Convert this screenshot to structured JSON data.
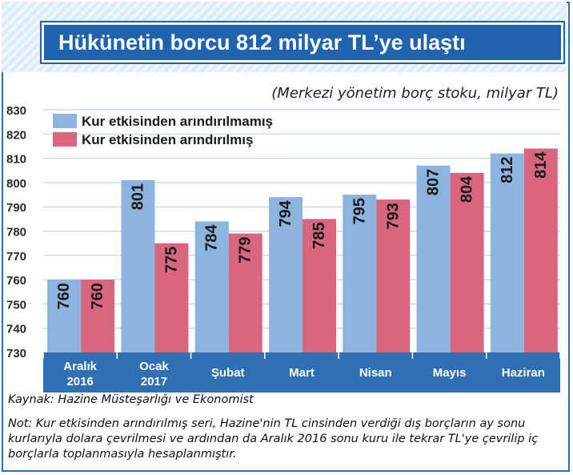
{
  "title": "Hükünetin borcu 812 milyar TL’ye ulaştı",
  "subtitle": "(Merkezi yönetim borç stoku, milyar TL)",
  "source": "Kaynak: Hazine Müsteşarlığı ve Ekonomist",
  "note": "Not: Kur etkisinden arındırılmış seri, Hazine'nin TL cinsinden verdiği dış borçların ay sonu kurlarıyla dolara çevrilmesi ve ardından da Aralık 2016 sonu kuru ile tekrar TL'ye çevrilip iç borçlarla toplanmasıyla hesaplanmıştır.",
  "colors": {
    "series1": "#8db3df",
    "series2": "#d9667e",
    "title_bg": "#1f63ad",
    "axis": "#2f6fb3"
  },
  "chart_data": {
    "type": "bar",
    "categories": [
      [
        "Aralık",
        "2016"
      ],
      [
        "Ocak",
        "2017"
      ],
      [
        "Şubat"
      ],
      [
        "Mart"
      ],
      [
        "Nisan"
      ],
      [
        "Mayıs"
      ],
      [
        "Haziran"
      ]
    ],
    "series": [
      {
        "name": "Kur etkisinden arındırılmamış",
        "values": [
          760,
          801,
          784,
          794,
          795,
          807,
          812
        ]
      },
      {
        "name": "Kur etkisinden arındırılmış",
        "values": [
          760,
          775,
          779,
          785,
          793,
          804,
          814
        ]
      }
    ],
    "ylim": [
      730,
      830
    ],
    "yticks": [
      730,
      740,
      750,
      760,
      770,
      780,
      790,
      800,
      810,
      820,
      830
    ],
    "grid": true,
    "legend_position": "top-left"
  }
}
